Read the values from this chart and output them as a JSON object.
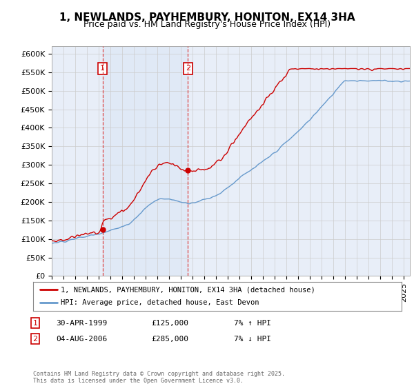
{
  "title": "1, NEWLANDS, PAYHEMBURY, HONITON, EX14 3HA",
  "subtitle": "Price paid vs. HM Land Registry's House Price Index (HPI)",
  "ylabel_ticks": [
    "£0",
    "£50K",
    "£100K",
    "£150K",
    "£200K",
    "£250K",
    "£300K",
    "£350K",
    "£400K",
    "£450K",
    "£500K",
    "£550K",
    "£600K"
  ],
  "ylim": [
    0,
    620000
  ],
  "ytick_vals": [
    0,
    50000,
    100000,
    150000,
    200000,
    250000,
    300000,
    350000,
    400000,
    450000,
    500000,
    550000,
    600000
  ],
  "sale1_year": 1999.33,
  "sale1_price": 125000,
  "sale2_year": 2006.59,
  "sale2_price": 285000,
  "line1_label": "1, NEWLANDS, PAYHEMBURY, HONITON, EX14 3HA (detached house)",
  "line2_label": "HPI: Average price, detached house, East Devon",
  "line1_color": "#cc0000",
  "line2_color": "#6699cc",
  "vline_color": "#dd4444",
  "grid_color": "#cccccc",
  "bg_color": "#ffffff",
  "plot_bg_color": "#e8eef8",
  "footer": "Contains HM Land Registry data © Crown copyright and database right 2025.\nThis data is licensed under the Open Government Licence v3.0.",
  "title_fontsize": 11,
  "subtitle_fontsize": 9,
  "tick_fontsize": 8,
  "xlim_start": 1995.0,
  "xlim_end": 2025.5
}
